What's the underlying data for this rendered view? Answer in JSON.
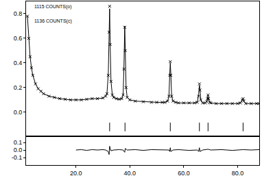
{
  "chart_data": [
    {
      "type": "scatter",
      "annotations": [
        "1115 COUNTS(o)",
        "1136 COUNTS(c)"
      ],
      "xlim": [
        1.5,
        88
      ],
      "ylim": [
        -0.19,
        0.9
      ],
      "yticks": [
        {
          "value": 0,
          "label": "0.0"
        },
        0.2,
        0.4,
        0.6,
        0.8
      ],
      "tick_labels": "y",
      "series": [
        {
          "type": "scatter",
          "marker": "x-thin",
          "color": "#000000",
          "x": [
            2,
            2.5,
            3,
            3.5,
            4,
            5,
            6,
            7,
            8,
            10,
            12,
            14,
            16,
            18,
            20,
            22,
            24,
            26,
            28,
            30,
            31,
            31.5,
            32,
            32.3,
            32.5,
            32.7,
            33,
            33.5,
            34,
            35,
            36,
            37,
            37.5,
            37.8,
            38.1,
            38.3,
            38.6,
            39,
            40,
            42,
            45,
            48,
            50,
            52,
            53,
            54,
            54.5,
            54.8,
            55,
            55.2,
            55.5,
            56,
            57,
            58,
            60,
            62,
            64,
            65,
            65.5,
            65.8,
            66,
            66.3,
            67,
            68,
            68.5,
            68.8,
            69,
            69.2,
            69.6,
            70,
            72,
            74,
            76,
            78,
            80,
            81,
            81.7,
            82,
            82.3,
            83,
            85,
            87,
            88
          ],
          "values": [
            0.78,
            0.6,
            0.45,
            0.36,
            0.3,
            0.23,
            0.19,
            0.17,
            0.15,
            0.13,
            0.12,
            0.11,
            0.105,
            0.1,
            0.1,
            0.1,
            0.105,
            0.11,
            0.11,
            0.115,
            0.13,
            0.15,
            0.3,
            0.65,
            0.86,
            0.55,
            0.25,
            0.14,
            0.12,
            0.11,
            0.105,
            0.11,
            0.14,
            0.35,
            0.69,
            0.5,
            0.2,
            0.12,
            0.1,
            0.09,
            0.085,
            0.08,
            0.08,
            0.08,
            0.08,
            0.09,
            0.13,
            0.3,
            0.41,
            0.3,
            0.13,
            0.09,
            0.08,
            0.075,
            0.075,
            0.075,
            0.075,
            0.08,
            0.13,
            0.23,
            0.18,
            0.1,
            0.075,
            0.075,
            0.085,
            0.11,
            0.14,
            0.11,
            0.08,
            0.075,
            0.07,
            0.07,
            0.07,
            0.07,
            0.07,
            0.075,
            0.1,
            0.11,
            0.09,
            0.07,
            0.07,
            0.07,
            0.07
          ]
        },
        {
          "type": "line",
          "line_style": "solid",
          "color": "#000000",
          "x": [
            2,
            2.5,
            3,
            3.5,
            4,
            5,
            6,
            7,
            8,
            10,
            12,
            14,
            16,
            18,
            20,
            22,
            24,
            26,
            28,
            30,
            31,
            31.5,
            32,
            32.3,
            32.5,
            32.7,
            33,
            33.5,
            34,
            35,
            36,
            37,
            37.5,
            37.8,
            38.1,
            38.3,
            38.6,
            39,
            40,
            42,
            45,
            48,
            50,
            52,
            53,
            54,
            54.5,
            54.8,
            55,
            55.2,
            55.5,
            56,
            57,
            58,
            60,
            62,
            64,
            65,
            65.5,
            65.8,
            66,
            66.3,
            67,
            68,
            68.5,
            68.8,
            69,
            69.2,
            69.6,
            70,
            72,
            74,
            76,
            78,
            80,
            81,
            81.7,
            82,
            82.3,
            83,
            85,
            87,
            88
          ],
          "values": [
            0.78,
            0.6,
            0.45,
            0.36,
            0.3,
            0.23,
            0.19,
            0.17,
            0.15,
            0.13,
            0.12,
            0.11,
            0.105,
            0.1,
            0.1,
            0.1,
            0.105,
            0.11,
            0.11,
            0.115,
            0.13,
            0.15,
            0.31,
            0.67,
            0.84,
            0.55,
            0.25,
            0.14,
            0.12,
            0.11,
            0.105,
            0.11,
            0.14,
            0.36,
            0.7,
            0.5,
            0.2,
            0.12,
            0.1,
            0.09,
            0.085,
            0.08,
            0.08,
            0.08,
            0.08,
            0.09,
            0.13,
            0.31,
            0.4,
            0.31,
            0.13,
            0.09,
            0.08,
            0.075,
            0.075,
            0.075,
            0.075,
            0.08,
            0.14,
            0.22,
            0.19,
            0.1,
            0.075,
            0.075,
            0.085,
            0.11,
            0.14,
            0.11,
            0.08,
            0.075,
            0.07,
            0.07,
            0.07,
            0.07,
            0.07,
            0.075,
            0.1,
            0.11,
            0.09,
            0.07,
            0.07,
            0.07,
            0.07
          ]
        },
        {
          "type": "scatter",
          "marker": "line-ns-open",
          "color": "#000000",
          "x": [
            32.5,
            38.2,
            55.0,
            65.8,
            69.0,
            82.0
          ],
          "values": [
            -0.12,
            -0.12,
            -0.12,
            -0.12,
            -0.12,
            -0.12
          ]
        }
      ]
    },
    {
      "type": "line",
      "xlim": [
        1.5,
        88
      ],
      "xticks": [
        {
          "value": 20,
          "label": "20.0"
        },
        {
          "value": 40,
          "label": "40.0"
        },
        {
          "value": 60,
          "label": "60.0"
        },
        {
          "value": 80,
          "label": "80.0"
        }
      ],
      "ylim": [
        -0.2,
        0.17
      ],
      "yticks": [
        {
          "value": 0.1,
          "label": "0.1"
        },
        {
          "value": 0,
          "label": "0.0"
        },
        {
          "value": -0.1,
          "label": "-0.1"
        }
      ],
      "series": [
        {
          "type": "line",
          "line_style": "solid",
          "color": "#000000",
          "x": [
            20,
            22,
            24,
            26,
            28,
            30,
            31,
            32,
            32.3,
            32.5,
            32.7,
            33,
            34,
            36,
            37.5,
            37.8,
            38.1,
            38.3,
            39,
            42,
            45,
            48,
            52,
            54.5,
            54.8,
            55,
            55.2,
            56,
            58,
            62,
            65,
            65.5,
            65.8,
            66,
            67,
            69,
            70,
            74,
            78,
            82,
            85,
            88
          ],
          "values": [
            0,
            0.005,
            -0.005,
            0.005,
            0,
            0.005,
            0,
            -0.02,
            -0.06,
            0.05,
            0.02,
            -0.01,
            0,
            0.005,
            0,
            -0.02,
            -0.03,
            0.02,
            0,
            0.005,
            -0.005,
            0.005,
            0,
            0,
            -0.02,
            0.03,
            -0.02,
            0,
            0.005,
            -0.005,
            0,
            -0.02,
            0.03,
            -0.02,
            0,
            0.01,
            0,
            0.005,
            -0.005,
            0.005,
            0,
            0.005
          ]
        }
      ]
    }
  ]
}
